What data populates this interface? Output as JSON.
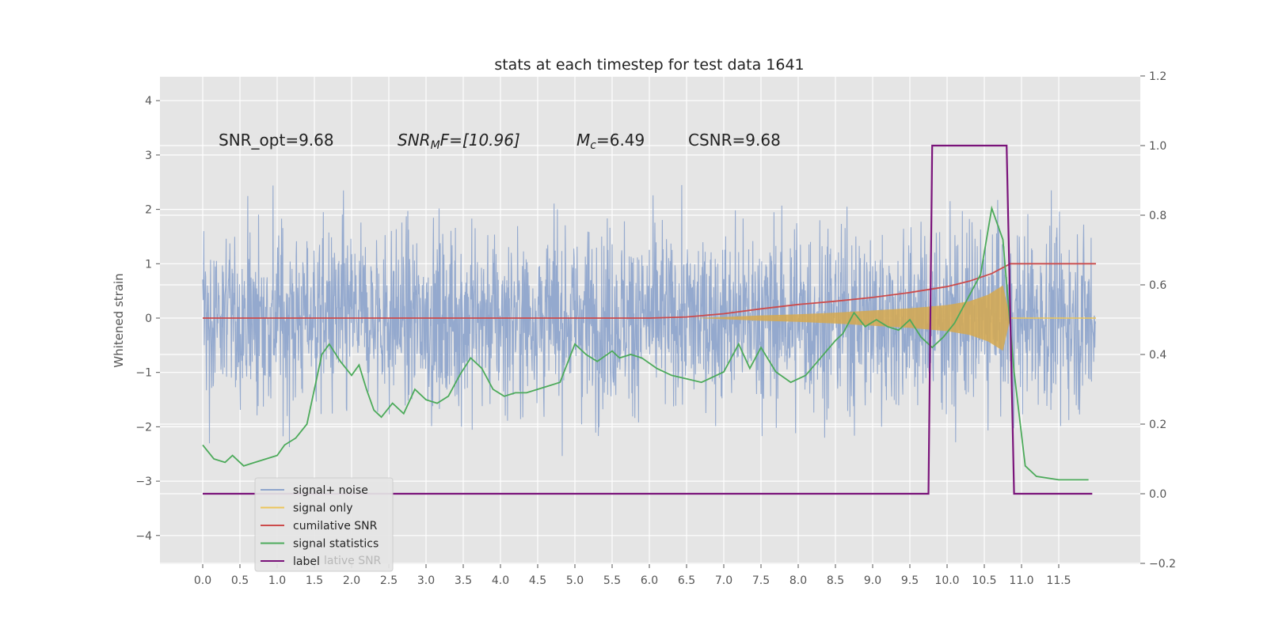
{
  "chart_data": {
    "type": "line",
    "title": "stats at each timestep for test data 1641",
    "ylabel": "Whitened strain",
    "xlabel": "",
    "xlim": [
      -0.5,
      12.7
    ],
    "ylim": [
      -4.5,
      4.4
    ],
    "y2lim": [
      -0.2,
      1.2
    ],
    "grid": true,
    "legend_position": "lower-left",
    "x_ticks": [
      "0.0",
      "0.5",
      "1.0",
      "1.5",
      "2.0",
      "2.5",
      "3.0",
      "3.5",
      "4.0",
      "4.5",
      "5.0",
      "5.5",
      "6.0",
      "6.5",
      "7.0",
      "7.5",
      "8.0",
      "8.5",
      "9.0",
      "9.5",
      "10.0",
      "10.5",
      "11.0",
      "11.5"
    ],
    "y_ticks": [
      "4",
      "3",
      "2",
      "1",
      "0",
      "−1",
      "−2",
      "−3",
      "−4"
    ],
    "y2_ticks": [
      "1.2",
      "1.0",
      "0.8",
      "0.6",
      "0.4",
      "0.2",
      "0.0",
      "−0.2"
    ],
    "annotations": {
      "snr_opt": "SNR_opt=9.68",
      "snr_mf_main": "SNR",
      "snr_mf_sub": "M",
      "snr_mf_rest": "F=[10.96]",
      "mc_main": "M",
      "mc_sub": "c",
      "mc_rest": "=6.49",
      "csnr": "CSNR=9.68"
    },
    "legend": [
      {
        "key": "noise",
        "label": "signal+ noise",
        "color": "#8fa5cc"
      },
      {
        "key": "signal",
        "label": "signal only",
        "color": "#ecc55a"
      },
      {
        "key": "csnr",
        "label": "cumilative SNR",
        "color": "#cc4b4b"
      },
      {
        "key": "stat",
        "label": "signal statistics",
        "color": "#4caa5a"
      },
      {
        "key": "label",
        "label": "label",
        "color": "#7a137a"
      }
    ],
    "legend_overlap_text": "lative SNR",
    "series": [
      {
        "name": "cumilative SNR",
        "axis": "left",
        "x": [
          0,
          6.0,
          6.5,
          7.0,
          7.5,
          8.0,
          8.5,
          9.0,
          9.5,
          10.0,
          10.3,
          10.6,
          10.85,
          11.0,
          12.0
        ],
        "y": [
          0,
          0,
          0.02,
          0.08,
          0.17,
          0.25,
          0.31,
          0.38,
          0.47,
          0.58,
          0.68,
          0.82,
          1.0,
          1.0,
          1.0
        ]
      },
      {
        "name": "signal statistics",
        "axis": "right",
        "x": [
          0.0,
          0.15,
          0.3,
          0.4,
          0.55,
          0.7,
          0.85,
          1.0,
          1.1,
          1.25,
          1.4,
          1.5,
          1.6,
          1.7,
          1.85,
          2.0,
          2.1,
          2.2,
          2.3,
          2.4,
          2.55,
          2.7,
          2.85,
          3.0,
          3.15,
          3.3,
          3.45,
          3.6,
          3.75,
          3.9,
          4.05,
          4.2,
          4.35,
          4.5,
          4.65,
          4.8,
          5.0,
          5.15,
          5.3,
          5.5,
          5.6,
          5.75,
          5.9,
          6.1,
          6.3,
          6.5,
          6.7,
          6.9,
          7.0,
          7.2,
          7.35,
          7.5,
          7.7,
          7.9,
          8.1,
          8.3,
          8.5,
          8.6,
          8.75,
          8.9,
          9.05,
          9.2,
          9.35,
          9.5,
          9.65,
          9.8,
          9.95,
          10.1,
          10.25,
          10.45,
          10.6,
          10.75,
          10.9,
          11.05,
          11.2,
          11.5,
          11.9
        ],
        "y": [
          0.14,
          0.1,
          0.09,
          0.11,
          0.08,
          0.09,
          0.1,
          0.11,
          0.14,
          0.16,
          0.2,
          0.3,
          0.4,
          0.43,
          0.38,
          0.34,
          0.37,
          0.3,
          0.24,
          0.22,
          0.26,
          0.23,
          0.3,
          0.27,
          0.26,
          0.28,
          0.34,
          0.39,
          0.36,
          0.3,
          0.28,
          0.29,
          0.29,
          0.3,
          0.31,
          0.32,
          0.43,
          0.4,
          0.38,
          0.41,
          0.39,
          0.4,
          0.39,
          0.36,
          0.34,
          0.33,
          0.32,
          0.34,
          0.35,
          0.43,
          0.36,
          0.42,
          0.35,
          0.32,
          0.34,
          0.39,
          0.44,
          0.46,
          0.52,
          0.48,
          0.5,
          0.48,
          0.47,
          0.5,
          0.45,
          0.42,
          0.45,
          0.49,
          0.55,
          0.63,
          0.82,
          0.73,
          0.35,
          0.08,
          0.05,
          0.04,
          0.04
        ]
      },
      {
        "name": "label",
        "axis": "right",
        "x": [
          0,
          9.75,
          9.8,
          10.8,
          10.9,
          11.95
        ],
        "y": [
          0,
          0,
          1,
          1,
          0,
          0
        ]
      },
      {
        "name": "signal only",
        "axis": "left",
        "envelope_x": [
          6.6,
          7.0,
          7.5,
          8.0,
          8.5,
          9.0,
          9.5,
          10.0,
          10.3,
          10.55,
          10.75,
          10.85,
          11.0,
          12.0
        ],
        "envelope_y": [
          0,
          0.02,
          0.05,
          0.07,
          0.1,
          0.14,
          0.18,
          0.24,
          0.31,
          0.43,
          0.6,
          0.0,
          0.0,
          0.0
        ]
      }
    ]
  }
}
